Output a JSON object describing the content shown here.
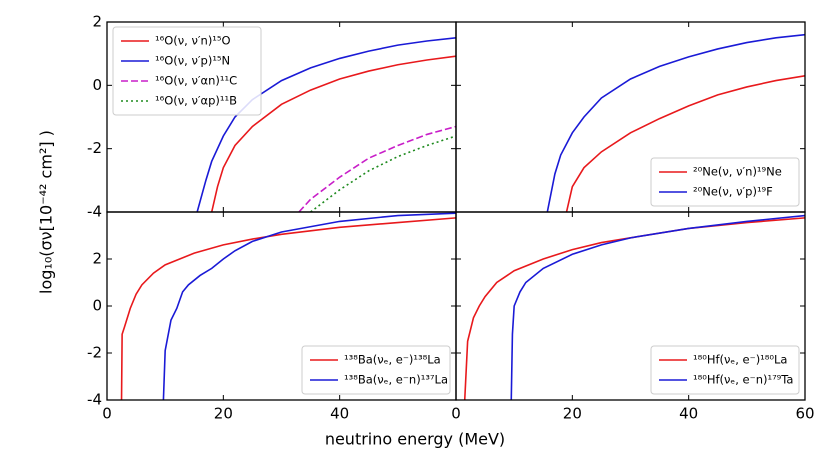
{
  "figure": {
    "xlabel": "neutrino energy (MeV)",
    "ylabel": "log₁₀(σν[10⁻⁴² cm²] )"
  },
  "chart_data": [
    {
      "type": "line",
      "xlim": [
        0,
        60
      ],
      "ylim": [
        -4,
        2
      ],
      "xticks": [
        0,
        20,
        40
      ],
      "yticks": [
        -4,
        -2,
        0,
        2
      ],
      "xtick_labels": false,
      "ytick_labels": true,
      "legend": "upper left",
      "series": [
        {
          "name": "¹⁶O(ν, ν′n)¹⁵O",
          "color": "#e8191c",
          "dash": "solid",
          "x": [
            18,
            19,
            20,
            22,
            25,
            30,
            35,
            40,
            45,
            50,
            55,
            60
          ],
          "values": [
            -4,
            -3.2,
            -2.6,
            -1.9,
            -1.3,
            -0.6,
            -0.15,
            0.2,
            0.45,
            0.65,
            0.8,
            0.92
          ]
        },
        {
          "name": "¹⁶O(ν, ν′p)¹⁵N",
          "color": "#1a1ad6",
          "dash": "solid",
          "x": [
            15.5,
            17,
            18,
            20,
            22,
            25,
            30,
            35,
            40,
            45,
            50,
            55,
            60
          ],
          "values": [
            -4,
            -3,
            -2.4,
            -1.6,
            -1,
            -0.45,
            0.15,
            0.55,
            0.85,
            1.08,
            1.27,
            1.4,
            1.5
          ]
        },
        {
          "name": "¹⁶O(ν, ν′αn)¹¹C",
          "color": "#c81ec8",
          "dash": "dashed",
          "x": [
            33,
            35,
            40,
            45,
            50,
            55,
            60
          ],
          "values": [
            -4,
            -3.6,
            -2.9,
            -2.3,
            -1.9,
            -1.55,
            -1.3
          ]
        },
        {
          "name": "¹⁶O(ν, ν′αp)¹¹B",
          "color": "#1e8a1e",
          "dash": "dotted",
          "x": [
            35,
            40,
            45,
            50,
            55,
            60
          ],
          "values": [
            -4,
            -3.3,
            -2.7,
            -2.25,
            -1.9,
            -1.6
          ]
        }
      ]
    },
    {
      "type": "line",
      "xlim": [
        0,
        60
      ],
      "ylim": [
        -4,
        2
      ],
      "xticks": [
        0,
        20,
        40,
        60
      ],
      "yticks": [
        -4,
        -2,
        0,
        2
      ],
      "xtick_labels": false,
      "ytick_labels": false,
      "legend": "lower right",
      "series": [
        {
          "name": "²⁰Ne(ν, ν′n)¹⁹Ne",
          "color": "#e8191c",
          "dash": "solid",
          "x": [
            19,
            20,
            22,
            25,
            30,
            35,
            40,
            45,
            50,
            55,
            60
          ],
          "values": [
            -4,
            -3.2,
            -2.6,
            -2.1,
            -1.5,
            -1.05,
            -0.65,
            -0.3,
            -0.05,
            0.15,
            0.3
          ]
        },
        {
          "name": "²⁰Ne(ν, ν′p)¹⁹F",
          "color": "#1a1ad6",
          "dash": "solid",
          "x": [
            15.7,
            17,
            18,
            20,
            22,
            25,
            30,
            35,
            40,
            45,
            50,
            55,
            60
          ],
          "values": [
            -4,
            -2.8,
            -2.2,
            -1.5,
            -1,
            -0.4,
            0.2,
            0.6,
            0.9,
            1.15,
            1.35,
            1.5,
            1.6
          ]
        }
      ]
    },
    {
      "type": "line",
      "xlim": [
        0,
        60
      ],
      "ylim": [
        -4,
        4
      ],
      "xticks": [
        0,
        20,
        40
      ],
      "yticks": [
        -4,
        -2,
        0,
        2
      ],
      "xtick_labels": true,
      "ytick_labels": true,
      "legend": "lower right",
      "series": [
        {
          "name": "¹³⁸Ba(νₑ, e⁻)¹³⁸La",
          "color": "#e8191c",
          "dash": "solid",
          "x": [
            2.5,
            2.6,
            3,
            4,
            5,
            6,
            8,
            10,
            15,
            20,
            25,
            30,
            40,
            50,
            60
          ],
          "values": [
            -4,
            -1.2,
            -0.9,
            -0.1,
            0.5,
            0.9,
            1.4,
            1.75,
            2.25,
            2.6,
            2.85,
            3.05,
            3.35,
            3.55,
            3.75
          ]
        },
        {
          "name": "¹³⁸Ba(νₑ, e⁻n)¹³⁷La",
          "color": "#1a1ad6",
          "dash": "solid",
          "x": [
            9.7,
            10,
            11,
            12,
            13,
            14,
            16,
            18,
            20,
            22,
            25,
            30,
            40,
            50,
            60
          ],
          "values": [
            -4,
            -1.9,
            -0.6,
            -0.1,
            0.6,
            0.9,
            1.3,
            1.6,
            2,
            2.35,
            2.75,
            3.15,
            3.6,
            3.85,
            3.95
          ]
        }
      ]
    },
    {
      "type": "line",
      "xlim": [
        0,
        60
      ],
      "ylim": [
        -4,
        4
      ],
      "xticks": [
        0,
        20,
        40,
        60
      ],
      "yticks": [
        -4,
        -2,
        0,
        2
      ],
      "xtick_labels": true,
      "ytick_labels": false,
      "legend": "lower right",
      "series": [
        {
          "name": "¹⁸⁰Hf(νₑ, e⁻)¹⁸⁰La",
          "color": "#e8191c",
          "dash": "solid",
          "x": [
            1.5,
            2,
            3,
            4,
            5,
            7,
            10,
            15,
            20,
            25,
            30,
            40,
            50,
            60
          ],
          "values": [
            -4,
            -1.5,
            -0.5,
            0,
            0.4,
            1,
            1.5,
            2,
            2.4,
            2.7,
            2.9,
            3.3,
            3.55,
            3.75
          ]
        },
        {
          "name": "¹⁸⁰Hf(νₑ, e⁻n)¹⁷⁹Ta",
          "color": "#1a1ad6",
          "dash": "solid",
          "x": [
            9.5,
            9.7,
            10,
            11,
            12,
            15,
            20,
            25,
            30,
            40,
            50,
            60
          ],
          "values": [
            -4,
            -1.2,
            0,
            0.6,
            1,
            1.6,
            2.2,
            2.6,
            2.9,
            3.3,
            3.6,
            3.85
          ]
        }
      ]
    }
  ]
}
